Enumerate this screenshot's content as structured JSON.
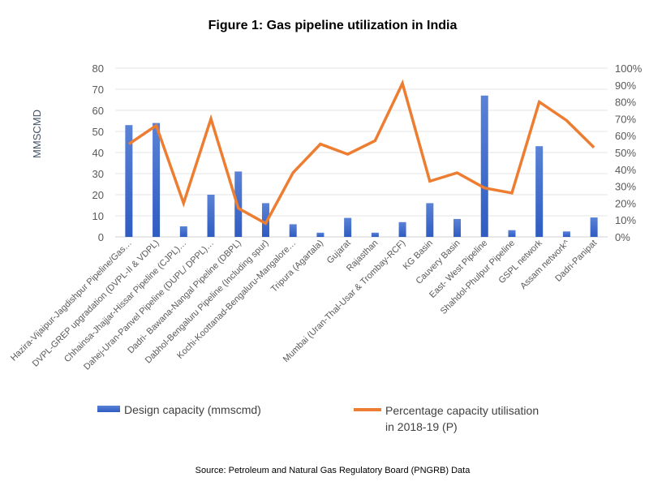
{
  "chart_data": {
    "type": "bar+line",
    "title": "Figure 1: Gas pipeline utilization in India",
    "ylabel": "MMSCMD",
    "ylim": [
      0,
      80
    ],
    "y_ticks": [
      "0",
      "10",
      "20",
      "30",
      "40",
      "50",
      "60",
      "70",
      "80"
    ],
    "y2lim": [
      0,
      100
    ],
    "y2_ticks": [
      "0%",
      "10%",
      "20%",
      "30%",
      "40%",
      "50%",
      "60%",
      "70%",
      "80%",
      "90%",
      "100%"
    ],
    "grid": true,
    "legend_position": "bottom",
    "categories": [
      "Hazira-Vijaipur-Jagdishpur Pipeline/Gas…",
      "DVPL-GREP upgradation (DVPL-II & VDPL)",
      "Chhainsa-Jhajjar-Hissar Pipeline (CJPL)…",
      "Dahej-Uran-Panvel Pipeline (DUPL/ DPPL)…",
      "Dadri- Bawana-Nangal Pipeline (DBPL)",
      "Dabhol-Bengaluru Pipeline (Including spur)",
      "Kochi-Koottanad-Bengaluru-Mangalore…",
      "Tripura (Agartala)",
      "Gujarat",
      "Rajasthan",
      "Mumbai (Uran-Thal-Usar & Trombay-RCF)",
      "KG  Basin",
      "Cauvery  Basin",
      "East- West Pipeline",
      "Shahdol-Phulpur Pipeline",
      "GSPL network",
      "Assam network^",
      "Dadri-Panipat"
    ],
    "series": [
      {
        "name": "Design capacity (mmscmd)",
        "type": "bar",
        "axis": "left",
        "color": "#3a67c9",
        "values": [
          53,
          54,
          5,
          20,
          31,
          16,
          6,
          2,
          9,
          2,
          7,
          16,
          8.5,
          67,
          3.2,
          43,
          2.6,
          9.2
        ]
      },
      {
        "name": "Percentage capacity utilisation in 2018-19 (P)",
        "type": "line",
        "axis": "right",
        "color": "#ed7d31",
        "values": [
          55,
          66,
          20,
          70,
          17,
          8,
          38,
          55,
          49,
          57,
          91,
          33,
          38,
          29,
          26,
          80,
          69,
          53
        ]
      }
    ]
  },
  "legend": {
    "bar_label": "Design capacity (mmscmd)",
    "line_label_1": "Percentage capacity utilisation",
    "line_label_2": "in 2018-19 (P)"
  },
  "source": "Source: Petroleum and Natural Gas Regulatory Board (PNGRB) Data"
}
